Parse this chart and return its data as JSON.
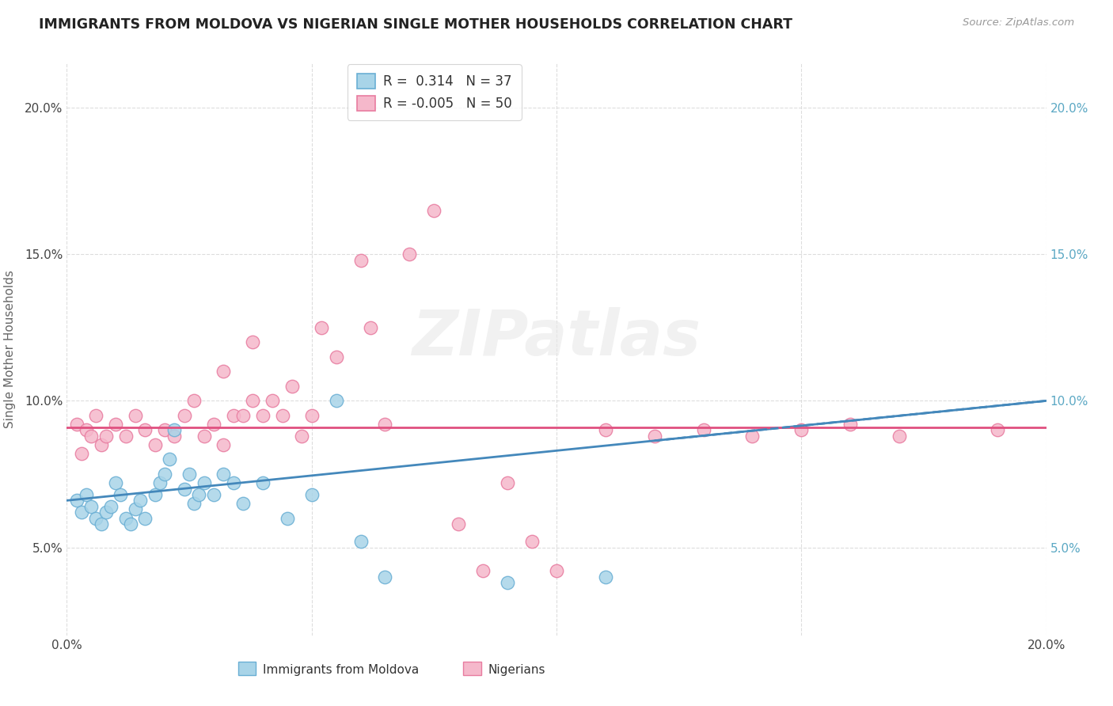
{
  "title": "IMMIGRANTS FROM MOLDOVA VS NIGERIAN SINGLE MOTHER HOUSEHOLDS CORRELATION CHART",
  "source_text": "Source: ZipAtlas.com",
  "ylabel": "Single Mother Households",
  "watermark": "ZIPatlas",
  "moldova_color": "#a8d4e8",
  "moldova_edge": "#6aafd4",
  "nigeria_color": "#f5b8cb",
  "nigeria_edge": "#e87ca0",
  "moldova_line_color": "#4488bb",
  "nigeria_line_color": "#e05080",
  "right_tick_color": "#5ba8c4",
  "background_color": "#ffffff",
  "grid_color": "#dddddd",
  "title_color": "#222222",
  "axis_label_color": "#666666",
  "tick_label_color": "#444444",
  "xlim": [
    0.0,
    0.2
  ],
  "ylim": [
    0.02,
    0.215
  ],
  "moldova_scatter": [
    [
      0.002,
      0.066
    ],
    [
      0.003,
      0.062
    ],
    [
      0.004,
      0.068
    ],
    [
      0.005,
      0.064
    ],
    [
      0.006,
      0.06
    ],
    [
      0.007,
      0.058
    ],
    [
      0.008,
      0.062
    ],
    [
      0.009,
      0.064
    ],
    [
      0.01,
      0.072
    ],
    [
      0.011,
      0.068
    ],
    [
      0.012,
      0.06
    ],
    [
      0.013,
      0.058
    ],
    [
      0.014,
      0.063
    ],
    [
      0.015,
      0.066
    ],
    [
      0.016,
      0.06
    ],
    [
      0.018,
      0.068
    ],
    [
      0.019,
      0.072
    ],
    [
      0.02,
      0.075
    ],
    [
      0.021,
      0.08
    ],
    [
      0.022,
      0.09
    ],
    [
      0.024,
      0.07
    ],
    [
      0.025,
      0.075
    ],
    [
      0.026,
      0.065
    ],
    [
      0.027,
      0.068
    ],
    [
      0.028,
      0.072
    ],
    [
      0.03,
      0.068
    ],
    [
      0.032,
      0.075
    ],
    [
      0.034,
      0.072
    ],
    [
      0.036,
      0.065
    ],
    [
      0.04,
      0.072
    ],
    [
      0.045,
      0.06
    ],
    [
      0.05,
      0.068
    ],
    [
      0.055,
      0.1
    ],
    [
      0.06,
      0.052
    ],
    [
      0.065,
      0.04
    ],
    [
      0.09,
      0.038
    ],
    [
      0.11,
      0.04
    ]
  ],
  "nigeria_scatter": [
    [
      0.002,
      0.092
    ],
    [
      0.003,
      0.082
    ],
    [
      0.004,
      0.09
    ],
    [
      0.005,
      0.088
    ],
    [
      0.006,
      0.095
    ],
    [
      0.007,
      0.085
    ],
    [
      0.008,
      0.088
    ],
    [
      0.01,
      0.092
    ],
    [
      0.012,
      0.088
    ],
    [
      0.014,
      0.095
    ],
    [
      0.016,
      0.09
    ],
    [
      0.018,
      0.085
    ],
    [
      0.02,
      0.09
    ],
    [
      0.022,
      0.088
    ],
    [
      0.024,
      0.095
    ],
    [
      0.026,
      0.1
    ],
    [
      0.028,
      0.088
    ],
    [
      0.03,
      0.092
    ],
    [
      0.032,
      0.085
    ],
    [
      0.034,
      0.095
    ],
    [
      0.036,
      0.095
    ],
    [
      0.038,
      0.1
    ],
    [
      0.04,
      0.095
    ],
    [
      0.042,
      0.1
    ],
    [
      0.044,
      0.095
    ],
    [
      0.046,
      0.105
    ],
    [
      0.048,
      0.088
    ],
    [
      0.05,
      0.095
    ],
    [
      0.052,
      0.125
    ],
    [
      0.055,
      0.115
    ],
    [
      0.06,
      0.148
    ],
    [
      0.062,
      0.125
    ],
    [
      0.07,
      0.15
    ],
    [
      0.075,
      0.165
    ],
    [
      0.038,
      0.12
    ],
    [
      0.032,
      0.11
    ],
    [
      0.065,
      0.092
    ],
    [
      0.08,
      0.058
    ],
    [
      0.085,
      0.042
    ],
    [
      0.09,
      0.072
    ],
    [
      0.095,
      0.052
    ],
    [
      0.1,
      0.042
    ],
    [
      0.11,
      0.09
    ],
    [
      0.12,
      0.088
    ],
    [
      0.13,
      0.09
    ],
    [
      0.14,
      0.088
    ],
    [
      0.15,
      0.09
    ],
    [
      0.16,
      0.092
    ],
    [
      0.17,
      0.088
    ],
    [
      0.19,
      0.09
    ]
  ]
}
